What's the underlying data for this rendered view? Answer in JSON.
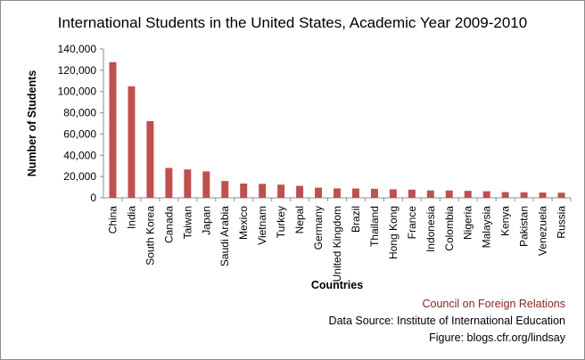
{
  "chart_data": {
    "type": "bar",
    "title": "International Students in the United States, Academic Year 2009-2010",
    "xlabel": "Countries",
    "ylabel": "Number of Students",
    "ylim": [
      0,
      140000
    ],
    "yticks": [
      "0",
      "20,000",
      "40,000",
      "60,000",
      "80,000",
      "100,000",
      "120,000",
      "140,000"
    ],
    "grid": false,
    "bar_color": "#c0504d",
    "categories": [
      "China",
      "India",
      "South Korea",
      "Canada",
      "Taiwan",
      "Japan",
      "Saudi Arabia",
      "Mexico",
      "Vietnam",
      "Turkey",
      "Nepal",
      "Germany",
      "United Kingdom",
      "Brazil",
      "Thailand",
      "Hong Kong",
      "France",
      "Indonesia",
      "Colombia",
      "Nigeria",
      "Malaysia",
      "Kenya",
      "Pakistan",
      "Venezuela",
      "Russia"
    ],
    "values": [
      127628,
      104897,
      72153,
      28145,
      26685,
      24842,
      15810,
      13450,
      13112,
      12397,
      11233,
      9548,
      8861,
      8786,
      8531,
      8034,
      7716,
      6943,
      6920,
      6568,
      6190,
      5384,
      5222,
      4958,
      4827
    ]
  },
  "credits": {
    "organization": "Council on Foreign Relations",
    "source": "Data Source: Institute of International Education",
    "figure": "Figure: blogs.cfr.org/lindsay"
  },
  "colors": {
    "organization_text": "#8b2323",
    "axis": "#8c8c8c"
  }
}
